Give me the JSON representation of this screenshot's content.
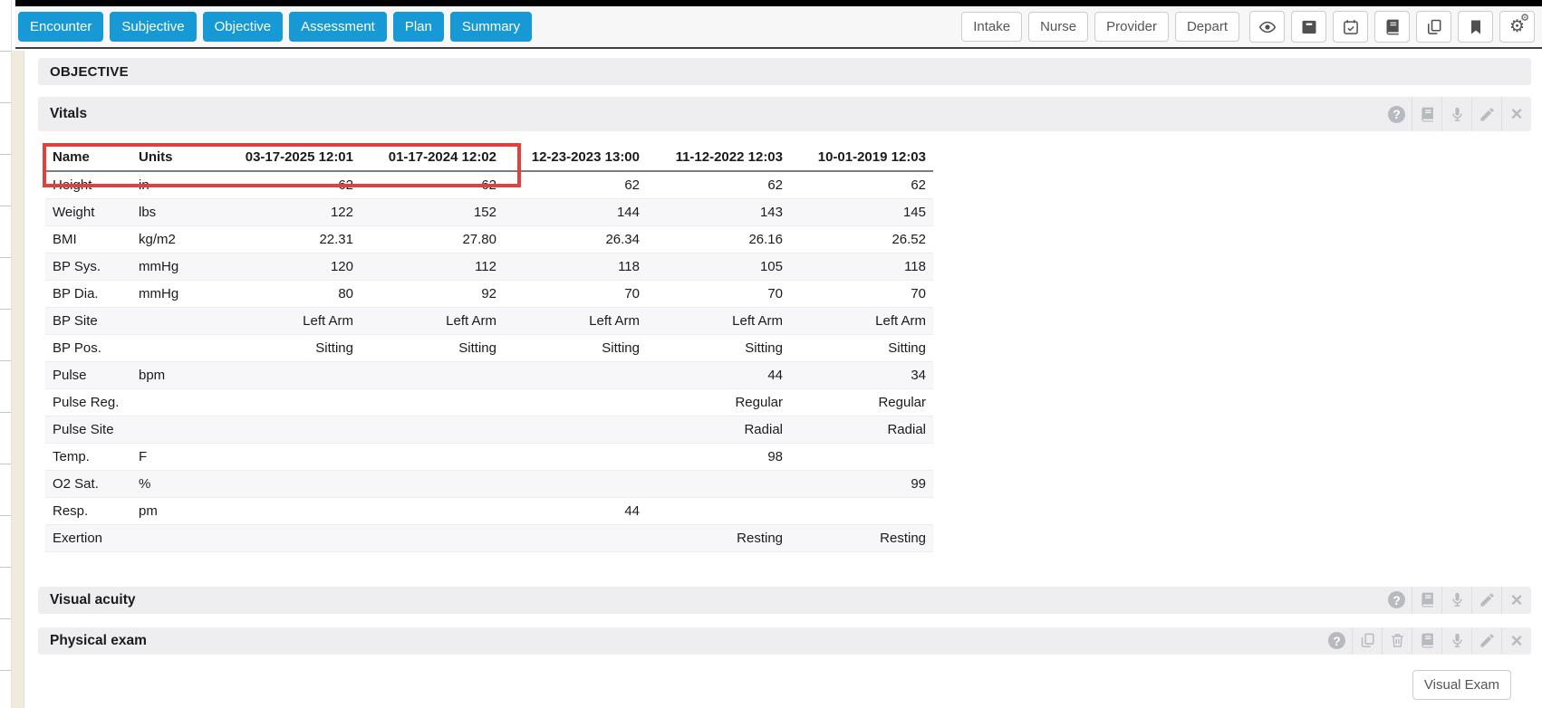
{
  "colors": {
    "accent_blue": "#1699d4",
    "highlight_red": "#e2403c",
    "bar_gray": "#eeeef1",
    "icon_gray": "#b7babe"
  },
  "topbar": {
    "nav_buttons": [
      "Encounter",
      "Subjective",
      "Objective",
      "Assessment",
      "Plan",
      "Summary"
    ],
    "right_text_buttons": [
      "Intake",
      "Nurse",
      "Provider",
      "Depart"
    ],
    "icon_buttons": [
      "eye",
      "archive",
      "calendar-check",
      "book",
      "copy",
      "bookmark",
      "gears"
    ]
  },
  "page": {
    "section_title": "OBJECTIVE",
    "sections": [
      {
        "title": "Vitals",
        "highlighted": true,
        "icons": [
          "help",
          "book",
          "microphone",
          "pencil",
          "close"
        ]
      },
      {
        "title": "Visual acuity",
        "highlighted": false,
        "icons": [
          "help",
          "book",
          "microphone",
          "pencil",
          "close"
        ]
      },
      {
        "title": "Physical exam",
        "highlighted": false,
        "icons": [
          "help",
          "copy",
          "trash",
          "book",
          "microphone",
          "pencil",
          "close"
        ]
      }
    ],
    "visual_exam_button": "Visual Exam"
  },
  "vitals_table": {
    "columns": [
      "Name",
      "Units",
      "03-17-2025 12:01",
      "01-17-2024 12:02",
      "12-23-2023 13:00",
      "11-12-2022 12:03",
      "10-01-2019 12:03"
    ],
    "rows": [
      {
        "name": "Height",
        "units": "in",
        "values": [
          "62",
          "62",
          "62",
          "62",
          "62"
        ]
      },
      {
        "name": "Weight",
        "units": "lbs",
        "values": [
          "122",
          "152",
          "144",
          "143",
          "145"
        ]
      },
      {
        "name": "BMI",
        "units": "kg/m2",
        "values": [
          "22.31",
          "27.80",
          "26.34",
          "26.16",
          "26.52"
        ]
      },
      {
        "name": "BP Sys.",
        "units": "mmHg",
        "values": [
          "120",
          "112",
          "118",
          "105",
          "118"
        ]
      },
      {
        "name": "BP Dia.",
        "units": "mmHg",
        "values": [
          "80",
          "92",
          "70",
          "70",
          "70"
        ]
      },
      {
        "name": "BP Site",
        "units": "",
        "values": [
          "Left Arm",
          "Left Arm",
          "Left Arm",
          "Left Arm",
          "Left Arm"
        ]
      },
      {
        "name": "BP Pos.",
        "units": "",
        "values": [
          "Sitting",
          "Sitting",
          "Sitting",
          "Sitting",
          "Sitting"
        ]
      },
      {
        "name": "Pulse",
        "units": "bpm",
        "values": [
          "",
          "",
          "",
          "44",
          "34"
        ]
      },
      {
        "name": "Pulse Reg.",
        "units": "",
        "values": [
          "",
          "",
          "",
          "Regular",
          "Regular"
        ]
      },
      {
        "name": "Pulse Site",
        "units": "",
        "values": [
          "",
          "",
          "",
          "Radial",
          "Radial"
        ]
      },
      {
        "name": "Temp.",
        "units": "F",
        "values": [
          "",
          "",
          "",
          "98",
          ""
        ]
      },
      {
        "name": "O2 Sat.",
        "units": "%",
        "values": [
          "",
          "",
          "",
          "",
          "99"
        ]
      },
      {
        "name": "Resp.",
        "units": "pm",
        "values": [
          "",
          "",
          "44",
          "",
          ""
        ]
      },
      {
        "name": "Exertion",
        "units": "",
        "values": [
          "",
          "",
          "",
          "Resting",
          "Resting"
        ]
      }
    ]
  }
}
